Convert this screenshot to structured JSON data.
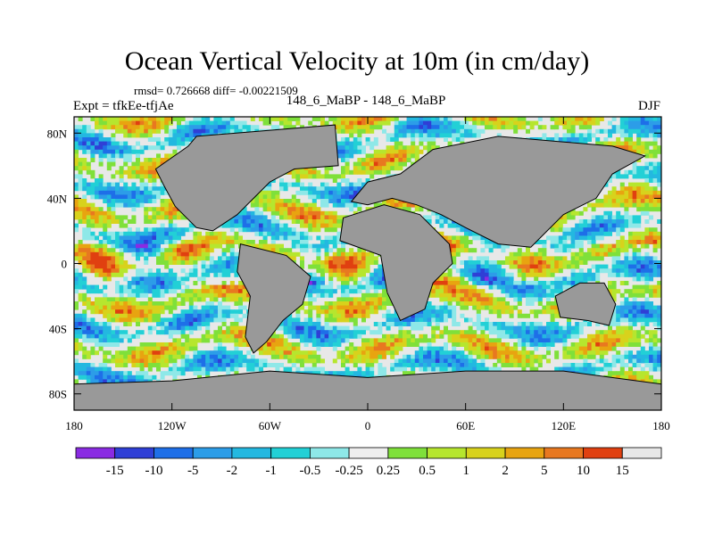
{
  "title": "Ocean Vertical Velocity at 10m (in cm/day)",
  "stats": "rmsd= 0.726668  diff= -0.00221509",
  "experiment": "Expt = tfkEe-tfjAe",
  "runs": "148_6_MaBP - 148_6_MaBP",
  "season": "DJF",
  "map": {
    "lon_range": [
      -180,
      180
    ],
    "lat_range": [
      -90,
      90
    ],
    "land_color": "#999999",
    "zero_band_color": "#e8e8e8",
    "x_ticks": [
      {
        "value": -180,
        "label": "180"
      },
      {
        "value": -120,
        "label": "120W"
      },
      {
        "value": -60,
        "label": "60W"
      },
      {
        "value": 0,
        "label": "0"
      },
      {
        "value": 60,
        "label": "60E"
      },
      {
        "value": 120,
        "label": "120E"
      },
      {
        "value": 180,
        "label": "180"
      }
    ],
    "y_ticks": [
      {
        "value": 80,
        "label": "80N"
      },
      {
        "value": 40,
        "label": "40N"
      },
      {
        "value": 0,
        "label": "0"
      },
      {
        "value": -40,
        "label": "40S"
      },
      {
        "value": -80,
        "label": "80S"
      }
    ]
  },
  "colorbar": {
    "levels": [
      "-15",
      "-10",
      "-5",
      "-2",
      "-1",
      "-0.5",
      "-0.25",
      "0.25",
      "0.5",
      "1",
      "2",
      "5",
      "10",
      "15"
    ],
    "colors": [
      "#8a2be2",
      "#2f3fd6",
      "#1e6fe8",
      "#2c9de8",
      "#23b8e0",
      "#22d0d6",
      "#8ee8e8",
      "#eeeeee",
      "#7fe03a",
      "#b6e62e",
      "#d8d21c",
      "#e8a410",
      "#e87820",
      "#e04010",
      "#e8e8e8"
    ]
  }
}
